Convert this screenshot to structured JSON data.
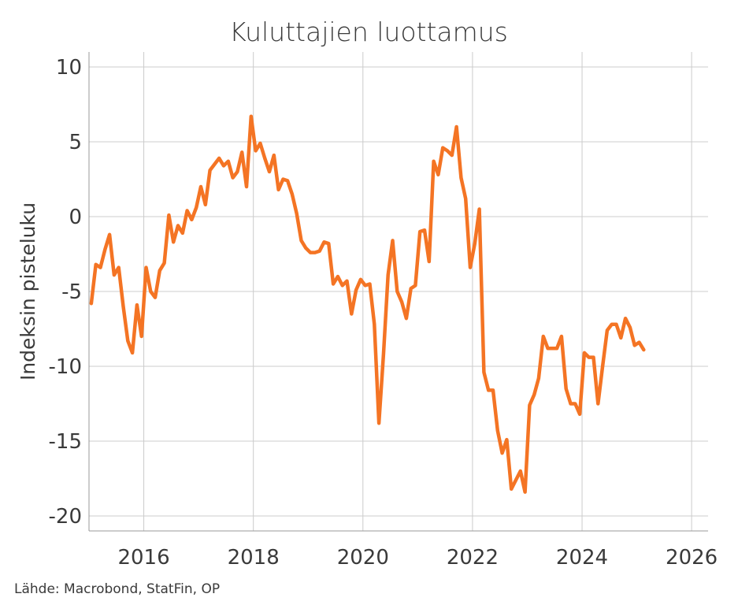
{
  "source": "Lähde: Macrobond, StatFin, OP",
  "colors": {
    "line": "#f47424",
    "grid": "#cccccc",
    "axis": "#999999",
    "text": "#3a3a3a"
  },
  "chart_data": {
    "type": "line",
    "title": "Kuluttajien luottamus",
    "xlabel": "",
    "ylabel": "Indeksin pisteluku",
    "xlim": [
      2015.0,
      2026.3
    ],
    "ylim": [
      -21,
      11
    ],
    "x_ticks": [
      2016,
      2018,
      2020,
      2022,
      2024,
      2026
    ],
    "x_tick_labels": [
      "2016",
      "2018",
      "2020",
      "2022",
      "2024",
      "2026"
    ],
    "y_ticks": [
      10,
      5,
      0,
      -5,
      -10,
      -15,
      -20
    ],
    "y_tick_labels": [
      "10",
      "5",
      "0",
      "-5",
      "-10",
      "-15",
      "-20"
    ],
    "grid": true,
    "series": [
      {
        "color": "#f47424",
        "x": [
          2015.0417,
          2015.125,
          2015.2083,
          2015.2917,
          2015.375,
          2015.4583,
          2015.5417,
          2015.625,
          2015.7083,
          2015.7917,
          2015.875,
          2015.9583,
          2016.0417,
          2016.125,
          2016.2083,
          2016.2917,
          2016.375,
          2016.4583,
          2016.5417,
          2016.625,
          2016.7083,
          2016.7917,
          2016.875,
          2016.9583,
          2017.0417,
          2017.125,
          2017.2083,
          2017.2917,
          2017.375,
          2017.4583,
          2017.5417,
          2017.625,
          2017.7083,
          2017.7917,
          2017.875,
          2017.9583,
          2018.0417,
          2018.125,
          2018.2083,
          2018.2917,
          2018.375,
          2018.4583,
          2018.5417,
          2018.625,
          2018.7083,
          2018.7917,
          2018.875,
          2018.9583,
          2019.0417,
          2019.125,
          2019.2083,
          2019.2917,
          2019.375,
          2019.4583,
          2019.5417,
          2019.625,
          2019.7083,
          2019.7917,
          2019.875,
          2019.9583,
          2020.0417,
          2020.125,
          2020.2083,
          2020.2917,
          2020.375,
          2020.4583,
          2020.5417,
          2020.625,
          2020.7083,
          2020.7917,
          2020.875,
          2020.9583,
          2021.0417,
          2021.125,
          2021.2083,
          2021.2917,
          2021.375,
          2021.4583,
          2021.5417,
          2021.625,
          2021.7083,
          2021.7917,
          2021.875,
          2021.9583,
          2022.0417,
          2022.125,
          2022.2083,
          2022.2917,
          2022.375,
          2022.4583,
          2022.5417,
          2022.625,
          2022.7083,
          2022.7917,
          2022.875,
          2022.9583,
          2023.0417,
          2023.125,
          2023.2083,
          2023.2917,
          2023.375,
          2023.4583,
          2023.5417,
          2023.625,
          2023.7083,
          2023.7917,
          2023.875,
          2023.9583,
          2024.0417,
          2024.125,
          2024.2083,
          2024.2917,
          2024.375,
          2024.4583,
          2024.5417,
          2024.625,
          2024.7083,
          2024.7917,
          2024.875,
          2024.9583,
          2025.0417,
          2025.125
        ],
        "y": [
          -5.8,
          -3.2,
          -3.4,
          -2.2,
          -1.2,
          -3.9,
          -3.4,
          -6.0,
          -8.3,
          -9.1,
          -5.9,
          -8.0,
          -3.4,
          -5.0,
          -5.4,
          -3.6,
          -3.1,
          0.1,
          -1.7,
          -0.6,
          -1.1,
          0.4,
          -0.2,
          0.6,
          2.0,
          0.8,
          3.1,
          3.5,
          3.9,
          3.4,
          3.7,
          2.6,
          3.0,
          4.3,
          2.0,
          6.7,
          4.4,
          4.9,
          3.9,
          3.0,
          4.1,
          1.8,
          2.5,
          2.4,
          1.5,
          0.2,
          -1.6,
          -2.1,
          -2.4,
          -2.4,
          -2.3,
          -1.7,
          -1.8,
          -4.5,
          -4.0,
          -4.6,
          -4.3,
          -6.5,
          -4.9,
          -4.2,
          -4.6,
          -4.5,
          -7.2,
          -13.8,
          -9.2,
          -3.9,
          -1.6,
          -5.0,
          -5.7,
          -6.8,
          -4.8,
          -4.6,
          -1.0,
          -0.9,
          -3.0,
          3.7,
          2.8,
          4.6,
          4.4,
          4.1,
          6.0,
          2.6,
          1.2,
          -3.4,
          -1.8,
          0.5,
          -10.4,
          -11.6,
          -11.6,
          -14.3,
          -15.8,
          -14.9,
          -18.2,
          -17.6,
          -17.0,
          -18.4,
          -12.6,
          -11.9,
          -10.8,
          -8.0,
          -8.8,
          -8.8,
          -8.8,
          -8.0,
          -11.5,
          -12.5,
          -12.5,
          -13.2,
          -9.1,
          -9.4,
          -9.4,
          -12.5,
          -10.0,
          -7.6,
          -7.2,
          -7.2,
          -8.1,
          -6.8,
          -7.4,
          -8.6,
          -8.4,
          -8.9
        ]
      }
    ]
  }
}
